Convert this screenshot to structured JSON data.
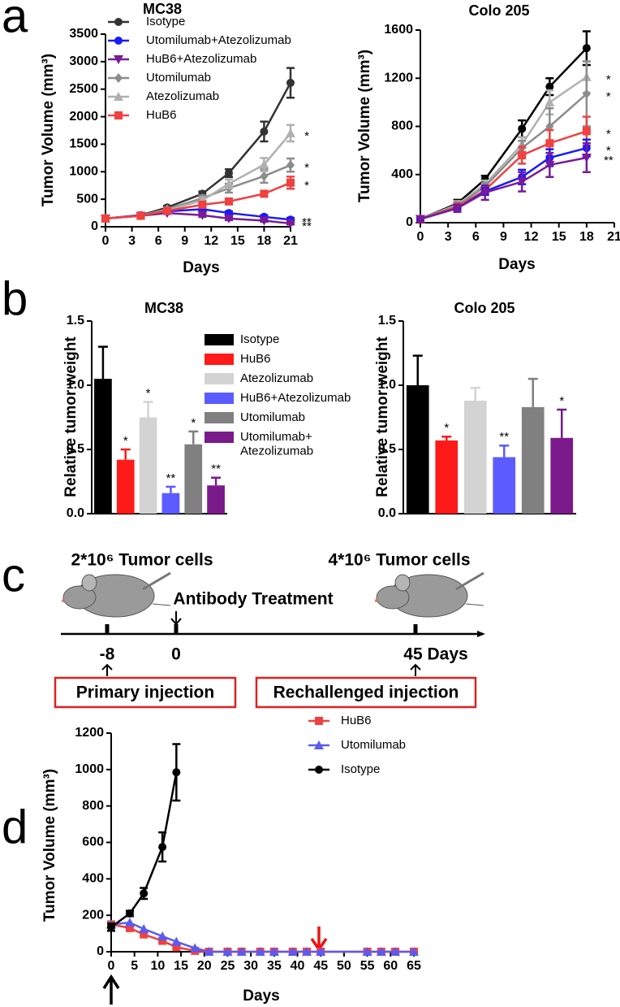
{
  "panel_labels": [
    "a",
    "b",
    "c",
    "d"
  ],
  "chart_data": [
    {
      "type": "line",
      "title": "MC38",
      "x_label": "Days",
      "y_label": "Tumor Volume (mm³)",
      "legend": true,
      "x": [
        0,
        4,
        7,
        11,
        14,
        18,
        21
      ],
      "xlim": [
        0,
        21
      ],
      "xticks": [
        0,
        3,
        6,
        9,
        12,
        15,
        18,
        21
      ],
      "ylim": [
        0,
        3500
      ],
      "yticks": [
        0,
        500,
        1000,
        1500,
        2000,
        2500,
        3000,
        3500
      ],
      "series": [
        {
          "name": "Isotype",
          "color": "#333333",
          "marker": "circle",
          "values": [
            150,
            210,
            350,
            600,
            975,
            1730,
            2615
          ],
          "errors": [
            20,
            20,
            30,
            40,
            70,
            180,
            270
          ]
        },
        {
          "name": "Utomilumab+Atezolizumab",
          "color": "#1a1aff",
          "marker": "circle",
          "significance": "**",
          "values": [
            150,
            210,
            280,
            320,
            250,
            180,
            130
          ],
          "errors": [
            15,
            15,
            20,
            30,
            30,
            30,
            30
          ]
        },
        {
          "name": "HuB6+Atezolizumab",
          "color": "#7a1a99",
          "marker": "tri-down",
          "significance": "**",
          "values": [
            150,
            200,
            250,
            210,
            150,
            110,
            60
          ],
          "errors": [
            15,
            15,
            20,
            30,
            30,
            20,
            20
          ]
        },
        {
          "name": "Utomilumab",
          "color": "#8c8c8c",
          "marker": "diamond",
          "significance": "*",
          "values": [
            150,
            200,
            320,
            520,
            700,
            920,
            1120
          ],
          "errors": [
            15,
            15,
            30,
            50,
            80,
            120,
            120
          ]
        },
        {
          "name": "Atezolizumab",
          "color": "#b0b0b0",
          "marker": "tri-up",
          "significance": "*",
          "values": [
            150,
            200,
            300,
            480,
            780,
            1130,
            1700
          ],
          "errors": [
            15,
            15,
            30,
            50,
            80,
            120,
            150
          ]
        },
        {
          "name": "HuB6",
          "color": "#f04040",
          "marker": "square",
          "significance": "*",
          "values": [
            150,
            200,
            290,
            400,
            460,
            600,
            800
          ],
          "errors": [
            15,
            15,
            20,
            40,
            40,
            40,
            110
          ]
        }
      ]
    },
    {
      "type": "line",
      "title": "Colo 205",
      "x_label": "Days",
      "y_label": "Tumor Volume (mm³)",
      "legend": false,
      "x": [
        0,
        4,
        7,
        11,
        14,
        18
      ],
      "xlim": [
        0,
        21
      ],
      "xticks": [
        0,
        3,
        6,
        9,
        12,
        15,
        18,
        21
      ],
      "ylim": [
        0,
        1600
      ],
      "yticks": [
        0,
        400,
        800,
        1200,
        1600
      ],
      "series": [
        {
          "name": "Isotype",
          "color": "#000000",
          "marker": "circle",
          "values": [
            30,
            160,
            360,
            780,
            1130,
            1450
          ],
          "errors": [
            20,
            30,
            30,
            70,
            70,
            140
          ]
        },
        {
          "name": "Atezolizumab",
          "color": "#b0b0b0",
          "marker": "tri-up",
          "significance": "*",
          "values": [
            30,
            150,
            320,
            650,
            1000,
            1210
          ],
          "errors": [
            20,
            30,
            30,
            60,
            100,
            130
          ]
        },
        {
          "name": "Utomilumab",
          "color": "#8c8c8c",
          "marker": "diamond",
          "significance": "*",
          "values": [
            30,
            140,
            300,
            620,
            800,
            1070
          ],
          "errors": [
            20,
            30,
            30,
            60,
            150,
            270
          ]
        },
        {
          "name": "HuB6",
          "color": "#f04040",
          "marker": "square",
          "significance": "*",
          "values": [
            30,
            130,
            270,
            560,
            660,
            760
          ],
          "errors": [
            20,
            30,
            30,
            70,
            110,
            120
          ]
        },
        {
          "name": "Utomilumab+Atezolizumab",
          "color": "#1a1aff",
          "marker": "circle",
          "significance": "*",
          "values": [
            30,
            120,
            260,
            380,
            540,
            620
          ],
          "errors": [
            20,
            30,
            30,
            60,
            70,
            70
          ]
        },
        {
          "name": "HuB6+Atezolizumab",
          "color": "#7a1a99",
          "marker": "tri-down",
          "significance": "**",
          "values": [
            30,
            120,
            250,
            340,
            480,
            540
          ],
          "errors": [
            20,
            30,
            60,
            80,
            100,
            120
          ]
        }
      ]
    },
    {
      "type": "bar",
      "title": "MC38",
      "y_label": "Relative tumor weight",
      "legend": true,
      "categories": [
        "Isotype",
        "HuB6",
        "Atezolizumab",
        "HuB6+Atezolizumab",
        "Utomilumab",
        "Utomilumab+\nAtezolizumab"
      ],
      "colors": [
        "#000000",
        "#ff1a1a",
        "#d3d3d3",
        "#5b5bff",
        "#808080",
        "#7a1a8a"
      ],
      "values": [
        1.05,
        0.42,
        0.75,
        0.16,
        0.54,
        0.22
      ],
      "errors": [
        0.25,
        0.08,
        0.12,
        0.05,
        0.1,
        0.06
      ],
      "significance": [
        null,
        "*",
        "*",
        "**",
        "*",
        "**"
      ],
      "ylim": [
        0,
        1.5
      ],
      "yticks": [
        {
          "value": 0,
          "label": "0.0"
        },
        {
          "value": 0.5,
          "label": "0.5"
        },
        {
          "value": 1,
          "label": "1.0"
        },
        {
          "value": 1.5,
          "label": "1.5"
        }
      ]
    },
    {
      "type": "bar",
      "title": "Colo 205",
      "y_label": "Relative tumor weight",
      "legend": false,
      "categories": [
        "Isotype",
        "HuB6",
        "Atezolizumab",
        "HuB6+Atezolizumab",
        "Utomilumab",
        "Utomilumab+\nAtezolizumab"
      ],
      "colors": [
        "#000000",
        "#ff1a1a",
        "#d3d3d3",
        "#5b5bff",
        "#808080",
        "#7a1a8a"
      ],
      "values": [
        1.0,
        0.57,
        0.88,
        0.44,
        0.83,
        0.59
      ],
      "errors": [
        0.23,
        0.03,
        0.1,
        0.09,
        0.22,
        0.22
      ],
      "significance": [
        null,
        "*",
        null,
        "**",
        null,
        "*"
      ],
      "ylim": [
        0,
        1.5
      ],
      "yticks": [
        {
          "value": 0,
          "label": "0.0"
        },
        {
          "value": 0.5,
          "label": "0.5"
        },
        {
          "value": 1,
          "label": "1.0"
        },
        {
          "value": 1.5,
          "label": "1.5"
        }
      ]
    },
    {
      "type": "line",
      "x_label": "Days",
      "y_label": "Tumor Volume (mm³)",
      "legend": true,
      "xlim": [
        0,
        65
      ],
      "xticks": [
        0,
        5,
        10,
        15,
        20,
        25,
        30,
        35,
        40,
        45,
        50,
        55,
        60,
        65
      ],
      "ylim": [
        0,
        1200
      ],
      "yticks": [
        0,
        200,
        400,
        600,
        800,
        1000,
        1200
      ],
      "series": [
        {
          "name": "HuB6",
          "color": "#f04040",
          "marker": "square",
          "x": [
            0,
            4,
            7,
            11,
            14,
            18,
            21,
            25,
            28,
            32,
            35,
            39,
            42,
            45,
            55,
            58,
            61,
            65
          ],
          "values": [
            150,
            130,
            95,
            60,
            25,
            5,
            0,
            0,
            0,
            0,
            0,
            0,
            0,
            0,
            0,
            0,
            0,
            0
          ]
        },
        {
          "name": "Utomilumab",
          "color": "#5b5bf0",
          "marker": "tri-up",
          "x": [
            0,
            4,
            7,
            11,
            14,
            18,
            21,
            25,
            28,
            32,
            35,
            39,
            42,
            45,
            55,
            58,
            61,
            65
          ],
          "values": [
            150,
            160,
            125,
            85,
            55,
            20,
            0,
            0,
            0,
            0,
            0,
            0,
            0,
            0,
            0,
            0,
            0,
            0
          ]
        },
        {
          "name": "Isotype",
          "color": "#000000",
          "marker": "circle",
          "x": [
            0,
            4,
            7,
            11,
            14
          ],
          "values": [
            135,
            210,
            320,
            575,
            985
          ],
          "errors": [
            20,
            15,
            30,
            80,
            155
          ]
        }
      ]
    }
  ],
  "timeline": {
    "first_cells": "2*10⁶ Tumor cells",
    "second_cells": "4*10⁶ Tumor cells",
    "treatment": "Antibody Treatment",
    "ticks": [
      "-8",
      "0",
      "45 Days"
    ],
    "first_box": "Primary injection",
    "second_box": "Rechallenged injection"
  }
}
